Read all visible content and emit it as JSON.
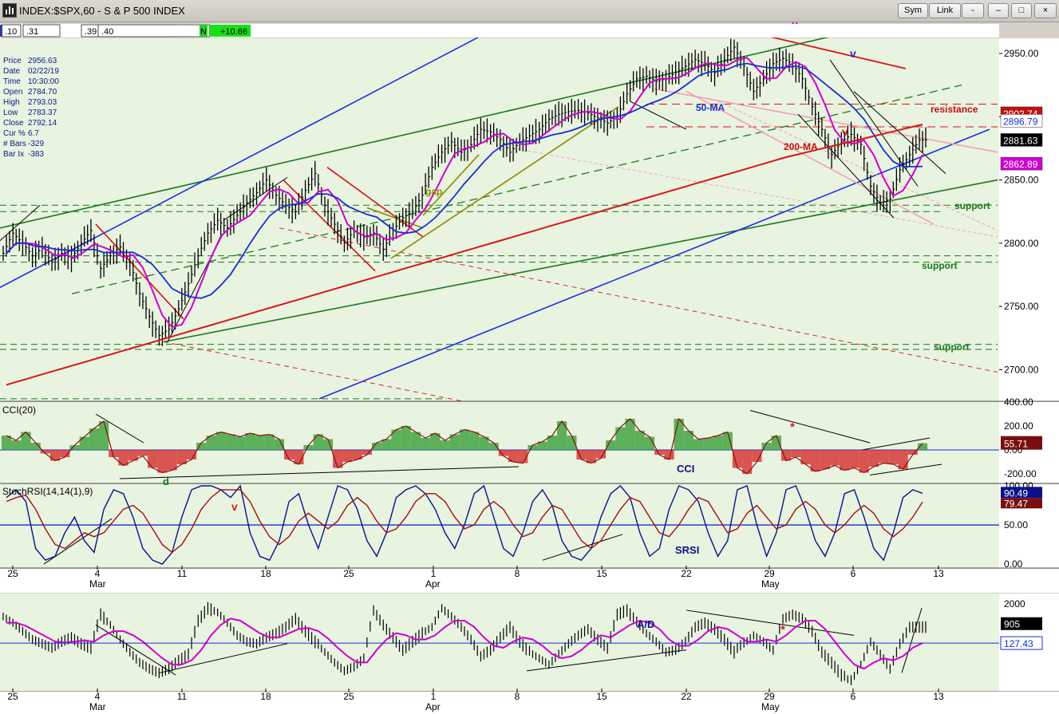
{
  "window": {
    "title": "INDEX:$SPX,60  -  S & P 500 INDEX",
    "buttons": {
      "sym": "Sym",
      "link": "Link",
      "misc": "-",
      "minimize": "–",
      "maximize": "□",
      "close": "×"
    }
  },
  "toolbar": {
    "cells": [
      ".10",
      ".31",
      ".39",
      ".40"
    ],
    "status_flag": "N",
    "change": "+10.66"
  },
  "data_window": [
    {
      "label": "Price",
      "value": "2956.63"
    },
    {
      "label": "Date",
      "value": "02/22/19"
    },
    {
      "label": "Time",
      "value": "10:30:00"
    },
    {
      "label": "Open",
      "value": "2784.70"
    },
    {
      "label": "High",
      "value": "2793.03"
    },
    {
      "label": "Low",
      "value": "2783.37"
    },
    {
      "label": "Close",
      "value": "2792.14"
    },
    {
      "label": "Cur %",
      "value": "6.7"
    },
    {
      "label": "# Bars",
      "value": "-329"
    },
    {
      "label": "Bar Ix",
      "value": "-383"
    }
  ],
  "colors": {
    "background": "#e8f3e0",
    "price_bars": "#000000",
    "ma_50": "#1a2fd0",
    "ma_200": "#d81515",
    "ma_short": "#d000d0",
    "channel_green": "#1b7a1b",
    "channel_blue": "#1f2ee0",
    "support_dash": "#1b7a1b",
    "pink": "#f2a0b0",
    "cci_up": "#2e9a2e",
    "cci_down": "#d42020",
    "cci_line": "#8b1010",
    "srsi_fast": "#0a128a",
    "srsi_slow": "#a01010"
  },
  "chart_data": [
    {
      "type": "ohlc",
      "panel": "price",
      "ylim": [
        2675,
        2962
      ],
      "yticks": [
        "2950.00",
        "2900.00",
        "2850.00",
        "2800.00",
        "2750.00",
        "2700.00"
      ],
      "ytick_values": [
        2950,
        2900,
        2850,
        2800,
        2750,
        2700
      ],
      "xticks": [
        "25",
        "4",
        "11",
        "18",
        "25",
        "1",
        "8",
        "15",
        "22",
        "29",
        "6",
        "13"
      ],
      "month_labels": [
        {
          "label": "Mar",
          "after_tick": 1
        },
        {
          "label": "Apr",
          "after_tick": 5
        },
        {
          "label": "May",
          "after_tick": 9
        }
      ],
      "price_tags": [
        {
          "value": 2902.74,
          "text": "2902.74",
          "color": "#c01010",
          "text_color": "#ffffff"
        },
        {
          "value": 2896.79,
          "text": "2896.79",
          "color": "#ffffff",
          "text_color": "#1a2fd0"
        },
        {
          "value": 2881.63,
          "text": "2881.63",
          "color": "#000000",
          "text_color": "#ffffff"
        },
        {
          "value": 2862.89,
          "text": "2862.89",
          "color": "#d000d0",
          "text_color": "#ffffff"
        }
      ],
      "annotations": [
        {
          "text": "resistance",
          "color": "#c01010"
        },
        {
          "text": "50-MA",
          "color": "#1a2fd0"
        },
        {
          "text": "200-MA",
          "color": "#c01010"
        },
        {
          "text": "gap",
          "color": "#8a8a00"
        },
        {
          "text": "support",
          "color": "#1b7a1b"
        },
        {
          "text": "support",
          "color": "#1b7a1b"
        },
        {
          "text": "support",
          "color": "#1b7a1b"
        },
        {
          "text": "v",
          "color": "#d000d0"
        },
        {
          "text": "v",
          "color": "#1a2fd0"
        },
        {
          "text": "v",
          "color": "#c01010"
        }
      ],
      "closes": [
        2792,
        2808,
        2800,
        2790,
        2796,
        2785,
        2792,
        2788,
        2800,
        2810,
        2780,
        2790,
        2797,
        2785,
        2760,
        2742,
        2727,
        2732,
        2748,
        2768,
        2790,
        2808,
        2818,
        2812,
        2822,
        2832,
        2840,
        2850,
        2838,
        2830,
        2825,
        2842,
        2855,
        2830,
        2815,
        2800,
        2810,
        2805,
        2808,
        2795,
        2810,
        2820,
        2825,
        2838,
        2860,
        2872,
        2880,
        2872,
        2878,
        2890,
        2888,
        2882,
        2872,
        2880,
        2885,
        2890,
        2898,
        2902,
        2904,
        2905,
        2903,
        2899,
        2895,
        2900,
        2918,
        2930,
        2932,
        2928,
        2930,
        2935,
        2940,
        2945,
        2942,
        2935,
        2945,
        2955,
        2940,
        2920,
        2930,
        2942,
        2946,
        2942,
        2930,
        2908,
        2890,
        2870,
        2880,
        2886,
        2878,
        2845,
        2832,
        2835,
        2858,
        2870,
        2881.63
      ]
    },
    {
      "type": "histogram",
      "panel": "CCI(20)",
      "label": "CCI(20)",
      "ylim": [
        -280,
        400
      ],
      "yticks": [
        "400.00",
        "200.00",
        "0.00",
        "-200.00"
      ],
      "ytick_values": [
        400,
        200,
        0,
        -200
      ],
      "last_value": "55.71",
      "annotations": [
        "CCI",
        "d",
        "*"
      ],
      "values": [
        120,
        80,
        150,
        60,
        -30,
        -90,
        -60,
        40,
        110,
        180,
        240,
        -60,
        -130,
        -90,
        -50,
        -150,
        -190,
        -170,
        -120,
        -80,
        60,
        120,
        150,
        130,
        110,
        140,
        120,
        130,
        90,
        -80,
        -120,
        40,
        130,
        90,
        -150,
        -100,
        -80,
        -40,
        60,
        90,
        170,
        200,
        150,
        100,
        140,
        80,
        130,
        170,
        150,
        110,
        60,
        -50,
        -100,
        -110,
        40,
        70,
        120,
        240,
        120,
        -80,
        -110,
        -70,
        80,
        190,
        260,
        160,
        110,
        -40,
        -80,
        260,
        160,
        90,
        100,
        120,
        150,
        -150,
        -200,
        -100,
        60,
        120,
        -90,
        -60,
        -120,
        -180,
        -160,
        -130,
        -170,
        -150,
        -190,
        -140,
        -110,
        -120,
        -160,
        -40,
        55.71
      ]
    },
    {
      "type": "line",
      "panel": "StochRSI(14,14(1),9)",
      "label": "StochRSI(14,14(1),9)",
      "ylim": [
        -5,
        102
      ],
      "yticks": [
        "100.00",
        "50.00",
        "0.00"
      ],
      "ytick_values": [
        100,
        50,
        0
      ],
      "last_values": [
        "90.49",
        "79.47"
      ],
      "annotations": [
        "SRSI",
        "v"
      ],
      "series": [
        {
          "values": [
            85,
            95,
            80,
            20,
            5,
            10,
            40,
            60,
            30,
            15,
            70,
            95,
            90,
            60,
            20,
            5,
            0,
            15,
            60,
            95,
            100,
            100,
            95,
            85,
            100,
            40,
            10,
            5,
            30,
            80,
            90,
            50,
            20,
            60,
            100,
            95,
            70,
            30,
            10,
            40,
            85,
            95,
            100,
            90,
            70,
            40,
            20,
            50,
            90,
            100,
            60,
            20,
            10,
            40,
            80,
            95,
            75,
            30,
            10,
            5,
            20,
            60,
            90,
            100,
            85,
            40,
            10,
            20,
            70,
            100,
            95,
            80,
            40,
            10,
            30,
            95,
            100,
            50,
            10,
            40,
            95,
            100,
            70,
            30,
            10,
            40,
            90,
            95,
            60,
            20,
            5,
            40,
            85,
            95,
            90.49
          ]
        },
        {
          "values": [
            80,
            85,
            88,
            70,
            45,
            25,
            20,
            30,
            40,
            35,
            40,
            55,
            70,
            75,
            65,
            45,
            25,
            15,
            25,
            45,
            70,
            85,
            95,
            95,
            95,
            80,
            55,
            35,
            25,
            35,
            55,
            65,
            55,
            45,
            55,
            75,
            85,
            75,
            55,
            40,
            45,
            60,
            80,
            90,
            90,
            80,
            60,
            45,
            50,
            70,
            80,
            70,
            50,
            35,
            40,
            60,
            75,
            70,
            50,
            30,
            20,
            30,
            50,
            70,
            85,
            80,
            60,
            40,
            35,
            50,
            70,
            85,
            80,
            60,
            40,
            45,
            65,
            75,
            60,
            45,
            50,
            70,
            80,
            70,
            50,
            40,
            50,
            65,
            75,
            65,
            45,
            35,
            45,
            60,
            79.47
          ]
        }
      ]
    },
    {
      "type": "ohlc",
      "panel": "A/D",
      "label": "A/D",
      "ylim": [
        -2200,
        2500
      ],
      "yticks": [
        "2000"
      ],
      "ytick_values": [
        2000
      ],
      "last_values": [
        "905",
        "127.43"
      ],
      "annotations": [
        "*"
      ],
      "closes": [
        1400,
        1100,
        700,
        300,
        100,
        -100,
        200,
        400,
        100,
        -100,
        1500,
        1000,
        300,
        -300,
        -800,
        -1100,
        -1300,
        -1100,
        -700,
        -400,
        1200,
        1800,
        1600,
        1100,
        500,
        200,
        100,
        400,
        600,
        900,
        1300,
        700,
        200,
        -300,
        -800,
        -1200,
        -1000,
        -600,
        1700,
        1000,
        400,
        -200,
        200,
        600,
        900,
        1800,
        1400,
        900,
        300,
        -500,
        -200,
        400,
        900,
        200,
        -300,
        -600,
        -900,
        -400,
        100,
        500,
        800,
        300,
        -100,
        1500,
        1700,
        1100,
        600,
        200,
        -300,
        -200,
        200,
        900,
        1100,
        800,
        300,
        -300,
        100,
        500,
        200,
        -200,
        1300,
        1500,
        1300,
        700,
        -300,
        -800,
        -1400,
        -1700,
        -900,
        200,
        -400,
        -1100,
        100,
        900,
        905
      ],
      "ma_values": [
        1100,
        1100,
        950,
        700,
        450,
        200,
        150,
        200,
        250,
        200,
        500,
        700,
        700,
        500,
        200,
        -200,
        -600,
        -900,
        -900,
        -700,
        -200,
        500,
        1000,
        1300,
        1200,
        900,
        600,
        400,
        400,
        600,
        800,
        850,
        700,
        350,
        -100,
        -500,
        -800,
        -800,
        -200,
        300,
        600,
        500,
        300,
        300,
        500,
        900,
        1200,
        1200,
        900,
        400,
        0,
        -100,
        200,
        400,
        300,
        0,
        -400,
        -600,
        -500,
        -200,
        200,
        500,
        400,
        700,
        1000,
        1200,
        1100,
        800,
        300,
        0,
        0,
        300,
        700,
        900,
        800,
        500,
        200,
        200,
        300,
        200,
        500,
        900,
        1200,
        1200,
        800,
        200,
        -400,
        -900,
        -1100,
        -800,
        -600,
        -700,
        -500,
        -100,
        127.43
      ]
    }
  ]
}
